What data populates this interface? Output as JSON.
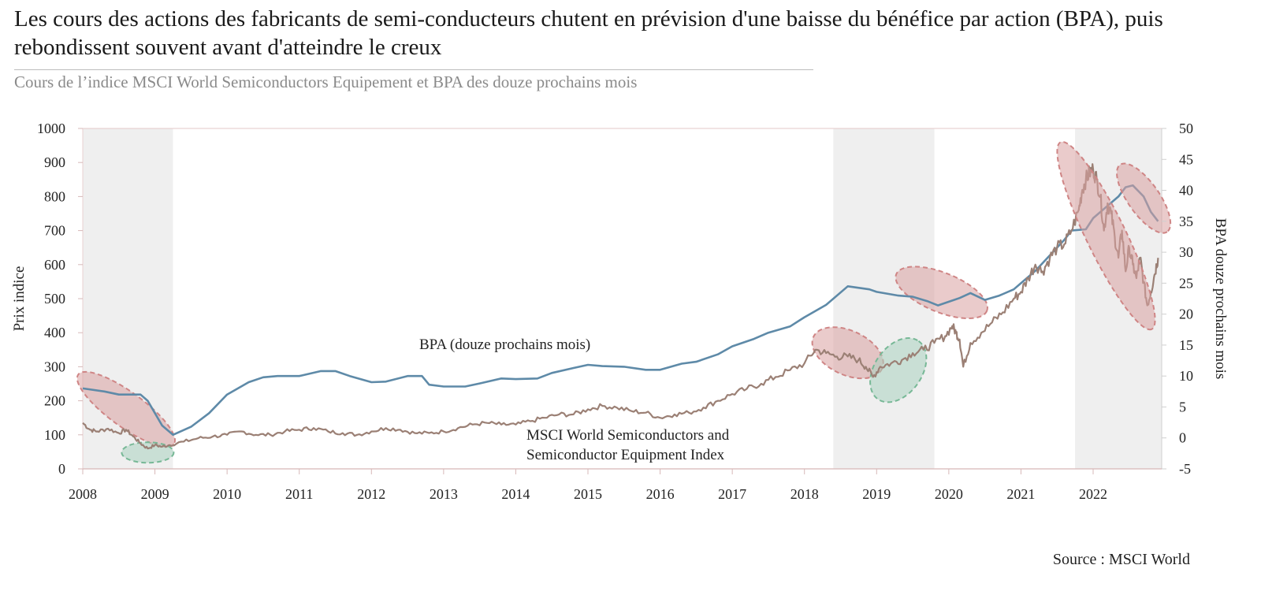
{
  "header": {
    "title": "Les cours des actions des fabricants de semi-conducteurs chutent en prévision d'une baisse du bénéfice par action (BPA), puis rebondissent souvent avant d'atteindre le creux",
    "subtitle": "Cours de l’indice MSCI World Semiconductors Equipement et BPA des douze prochains mois"
  },
  "footer": {
    "source": "Source : MSCI World"
  },
  "chart_data": {
    "type": "line",
    "title": "",
    "xlabel": "",
    "ylabel": "Prix indice",
    "y2label": "BPA douze prochains mois",
    "x_ticks": [
      "2008",
      "2009",
      "2010",
      "2011",
      "2012",
      "2013",
      "2014",
      "2015",
      "2016",
      "2017",
      "2018",
      "2019",
      "2020",
      "2021",
      "2022"
    ],
    "xlim": [
      2008.0,
      2022.95
    ],
    "ylim": [
      0,
      1000
    ],
    "y_ticks": [
      0,
      100,
      200,
      300,
      400,
      500,
      600,
      700,
      800,
      900,
      1000
    ],
    "y2lim": [
      -5,
      50
    ],
    "y2_ticks": [
      -5,
      0,
      5,
      10,
      15,
      20,
      25,
      30,
      35,
      40,
      45,
      50
    ],
    "grid": false,
    "colors": {
      "eps": "#5e8aa8",
      "index": "#9b8075",
      "shade": "#efefef",
      "red_fill": "#d9a0a0",
      "red_stroke": "#cf8585",
      "green_fill": "#a9d2bf",
      "green_stroke": "#77b896"
    },
    "shaded_periods": [
      [
        2008.0,
        2009.25
      ],
      [
        2018.4,
        2019.8
      ],
      [
        2021.75,
        2022.95
      ]
    ],
    "series": [
      {
        "name": "BPA (douze prochains mois)",
        "axis": "right",
        "x": [
          2008.0,
          2008.3,
          2008.5,
          2008.8,
          2008.9,
          2009.0,
          2009.1,
          2009.25,
          2009.5,
          2009.75,
          2010.0,
          2010.3,
          2010.5,
          2010.7,
          2011.0,
          2011.3,
          2011.5,
          2011.7,
          2012.0,
          2012.2,
          2012.5,
          2012.7,
          2012.8,
          2013.0,
          2013.3,
          2013.5,
          2013.8,
          2014.0,
          2014.3,
          2014.5,
          2014.8,
          2015.0,
          2015.2,
          2015.5,
          2015.8,
          2016.0,
          2016.3,
          2016.5,
          2016.8,
          2017.0,
          2017.3,
          2017.5,
          2017.8,
          2018.0,
          2018.3,
          2018.6,
          2018.9,
          2019.0,
          2019.3,
          2019.5,
          2019.7,
          2019.85,
          2020.0,
          2020.15,
          2020.3,
          2020.5,
          2020.7,
          2020.9,
          2021.0,
          2021.2,
          2021.4,
          2021.6,
          2021.7,
          2021.9,
          2022.0,
          2022.2,
          2022.35,
          2022.45,
          2022.55,
          2022.7,
          2022.8,
          2022.9
        ],
        "values": [
          8,
          7.5,
          7,
          7,
          6,
          4,
          2,
          0.5,
          1.8,
          4,
          7,
          9,
          9.8,
          10,
          10,
          10.8,
          10.8,
          10,
          9,
          9.1,
          10,
          10,
          8.6,
          8.3,
          8.3,
          8.8,
          9.6,
          9.5,
          9.6,
          10.5,
          11.3,
          11.8,
          11.6,
          11.5,
          11,
          11,
          12,
          12.3,
          13.5,
          14.8,
          16,
          17,
          18,
          19.5,
          21.5,
          24.5,
          24,
          23.6,
          23,
          22.8,
          22.1,
          21.4,
          22,
          22.6,
          23.4,
          22.3,
          23,
          24,
          25,
          27,
          29.5,
          32,
          33.5,
          33.7,
          35.5,
          37.5,
          39,
          40.5,
          40.8,
          39,
          36.5,
          35
        ]
      },
      {
        "name": "MSCI World Semiconductors and Semiconductor Equipment Index",
        "axis": "left",
        "x": [
          2008.0,
          2008.1,
          2008.2,
          2008.35,
          2008.5,
          2008.6,
          2008.7,
          2008.8,
          2008.9,
          2009.0,
          2009.1,
          2009.2,
          2009.4,
          2009.6,
          2009.8,
          2010.0,
          2010.2,
          2010.4,
          2010.6,
          2010.8,
          2011.0,
          2011.2,
          2011.4,
          2011.6,
          2011.8,
          2012.0,
          2012.2,
          2012.4,
          2012.6,
          2012.8,
          2013.0,
          2013.2,
          2013.4,
          2013.6,
          2013.8,
          2014.0,
          2014.2,
          2014.4,
          2014.6,
          2014.8,
          2015.0,
          2015.2,
          2015.4,
          2015.6,
          2015.8,
          2016.0,
          2016.2,
          2016.4,
          2016.6,
          2016.8,
          2017.0,
          2017.2,
          2017.4,
          2017.6,
          2017.8,
          2018.0,
          2018.15,
          2018.3,
          2018.45,
          2018.6,
          2018.75,
          2018.85,
          2018.95,
          2019.05,
          2019.2,
          2019.35,
          2019.5,
          2019.65,
          2019.8,
          2019.95,
          2020.05,
          2020.1,
          2020.15,
          2020.2,
          2020.3,
          2020.45,
          2020.6,
          2020.75,
          2020.9,
          2021.0,
          2021.1,
          2021.2,
          2021.3,
          2021.4,
          2021.5,
          2021.6,
          2021.7,
          2021.8,
          2021.85,
          2021.9,
          2021.95,
          2022.0,
          2022.05,
          2022.1,
          2022.15,
          2022.2,
          2022.25,
          2022.3,
          2022.35,
          2022.4,
          2022.45,
          2022.5,
          2022.55,
          2022.6,
          2022.65,
          2022.7,
          2022.75,
          2022.8,
          2022.85,
          2022.9
        ],
        "values": [
          135,
          115,
          110,
          118,
          105,
          115,
          95,
          75,
          60,
          70,
          65,
          70,
          80,
          90,
          95,
          100,
          110,
          100,
          100,
          110,
          115,
          120,
          110,
          105,
          100,
          110,
          120,
          115,
          105,
          105,
          110,
          120,
          130,
          135,
          130,
          130,
          140,
          150,
          160,
          160,
          175,
          185,
          180,
          170,
          165,
          150,
          160,
          165,
          180,
          200,
          220,
          235,
          250,
          270,
          290,
          310,
          350,
          340,
          330,
          330,
          320,
          300,
          270,
          300,
          310,
          320,
          340,
          350,
          370,
          390,
          420,
          400,
          380,
          300,
          370,
          400,
          430,
          460,
          500,
          520,
          560,
          600,
          580,
          620,
          650,
          660,
          700,
          760,
          820,
          850,
          870,
          880,
          850,
          800,
          700,
          780,
          750,
          680,
          620,
          700,
          580,
          650,
          600,
          560,
          620,
          550,
          480,
          520,
          570,
          620
        ]
      }
    ],
    "annotations": [
      {
        "text": "BPA (douze prochains mois)"
      },
      {
        "text": "MSCI World Semiconductors and",
        "line2": "Semiconductor Equipment Index"
      }
    ]
  }
}
